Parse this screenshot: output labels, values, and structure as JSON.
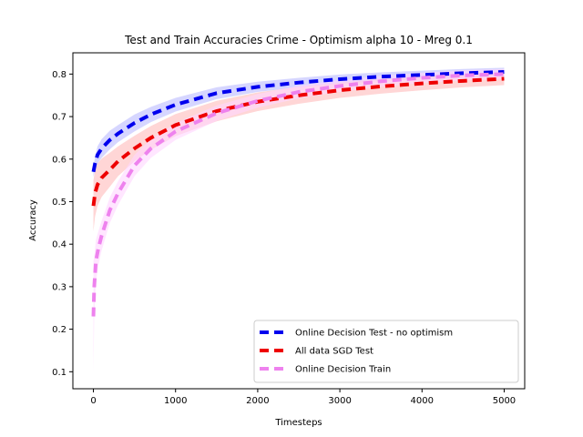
{
  "chart_data": {
    "type": "line",
    "title": "Test and Train Accuracies Crime - Optimism alpha 10 - Mreg 0.1",
    "xlabel": "Timesteps",
    "ylabel": "Accuracy",
    "xlim": [
      -250,
      5250
    ],
    "ylim": [
      0.06,
      0.85
    ],
    "xticks": [
      0,
      1000,
      2000,
      3000,
      4000,
      5000
    ],
    "yticks": [
      0.1,
      0.2,
      0.3,
      0.4,
      0.5,
      0.6,
      0.7,
      0.8
    ],
    "legend_position": "lower-right",
    "grid": false,
    "series": [
      {
        "name": "Online Decision Test - no optimism",
        "color": "#0000ee",
        "band_color": "#bbbbff",
        "points": [
          [
            0,
            0.57
          ],
          [
            20,
            0.59
          ],
          [
            50,
            0.61
          ],
          [
            100,
            0.625
          ],
          [
            200,
            0.645
          ],
          [
            300,
            0.66
          ],
          [
            500,
            0.685
          ],
          [
            700,
            0.705
          ],
          [
            1000,
            0.728
          ],
          [
            1500,
            0.755
          ],
          [
            2000,
            0.77
          ],
          [
            2500,
            0.78
          ],
          [
            3000,
            0.788
          ],
          [
            3500,
            0.794
          ],
          [
            4000,
            0.798
          ],
          [
            4500,
            0.802
          ],
          [
            5000,
            0.805
          ]
        ],
        "band_halfwidth": [
          0.012,
          0.015,
          0.02,
          0.022,
          0.022,
          0.02,
          0.02,
          0.018,
          0.016,
          0.014,
          0.012,
          0.011,
          0.011,
          0.01,
          0.01,
          0.01,
          0.01
        ]
      },
      {
        "name": "All data SGD Test",
        "color": "#ee0000",
        "band_color": "#ffbbbb",
        "points": [
          [
            0,
            0.49
          ],
          [
            20,
            0.52
          ],
          [
            50,
            0.54
          ],
          [
            100,
            0.556
          ],
          [
            200,
            0.575
          ],
          [
            300,
            0.595
          ],
          [
            500,
            0.625
          ],
          [
            700,
            0.65
          ],
          [
            1000,
            0.68
          ],
          [
            1500,
            0.713
          ],
          [
            2000,
            0.735
          ],
          [
            2500,
            0.75
          ],
          [
            3000,
            0.762
          ],
          [
            3500,
            0.771
          ],
          [
            4000,
            0.778
          ],
          [
            4500,
            0.784
          ],
          [
            5000,
            0.789
          ]
        ],
        "band_halfwidth": [
          0.06,
          0.055,
          0.05,
          0.045,
          0.04,
          0.035,
          0.03,
          0.028,
          0.026,
          0.024,
          0.022,
          0.02,
          0.018,
          0.017,
          0.016,
          0.015,
          0.015
        ]
      },
      {
        "name": "Online Decision Train",
        "color": "#ee82ee",
        "band_color": "#ffd6ff",
        "points": [
          [
            0,
            0.23
          ],
          [
            10,
            0.3
          ],
          [
            30,
            0.36
          ],
          [
            60,
            0.39
          ],
          [
            100,
            0.42
          ],
          [
            200,
            0.48
          ],
          [
            300,
            0.52
          ],
          [
            500,
            0.585
          ],
          [
            700,
            0.625
          ],
          [
            1000,
            0.665
          ],
          [
            1500,
            0.708
          ],
          [
            2000,
            0.737
          ],
          [
            2500,
            0.758
          ],
          [
            3000,
            0.772
          ],
          [
            3500,
            0.783
          ],
          [
            4000,
            0.791
          ],
          [
            4500,
            0.797
          ],
          [
            5000,
            0.8
          ]
        ],
        "band_halfwidth": [
          0.13,
          0.07,
          0.05,
          0.04,
          0.035,
          0.03,
          0.028,
          0.025,
          0.022,
          0.02,
          0.018,
          0.016,
          0.015,
          0.014,
          0.013,
          0.012,
          0.012,
          0.012
        ]
      }
    ]
  }
}
